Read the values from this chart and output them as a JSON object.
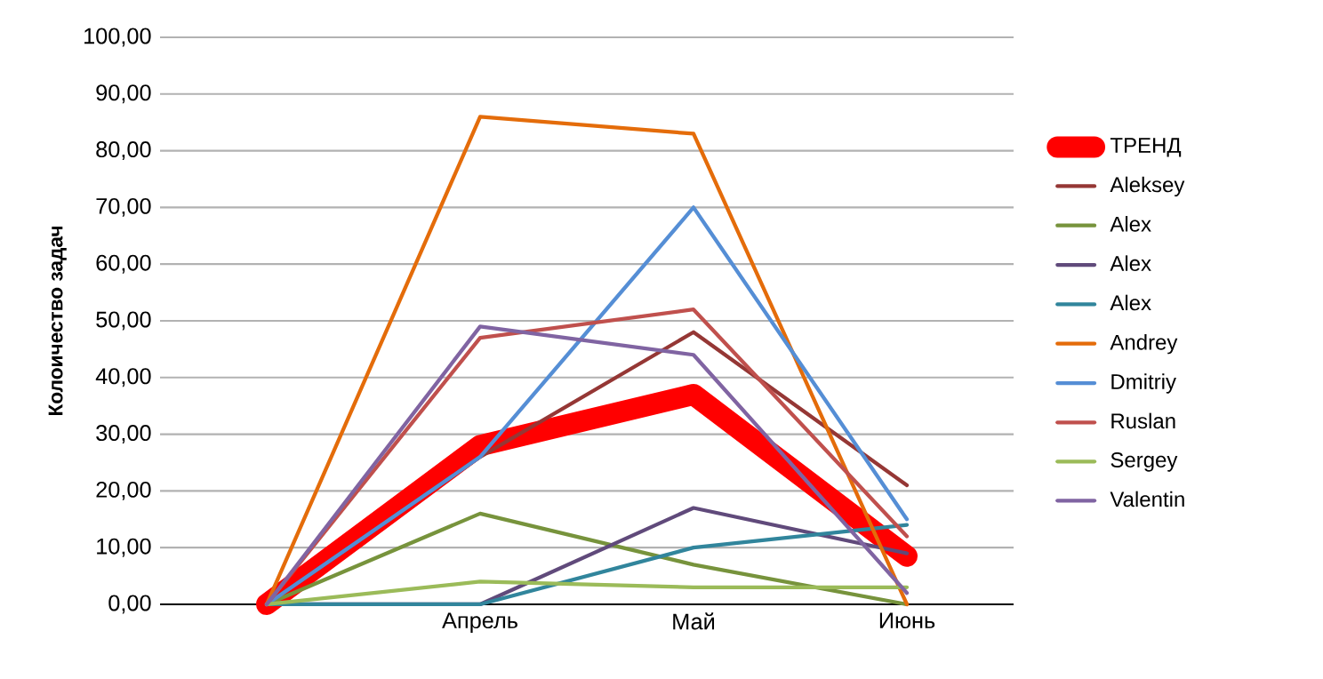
{
  "chart_data": {
    "type": "line",
    "ylabel": "Колоичество задач",
    "categories": [
      null,
      "Апрель",
      "Май",
      "Июнь"
    ],
    "ylim": [
      0,
      100
    ],
    "yticks": [
      {
        "value": 0,
        "label": "0,00"
      },
      {
        "value": 10,
        "label": "10,00"
      },
      {
        "value": 20,
        "label": "20,00"
      },
      {
        "value": 30,
        "label": "30,00"
      },
      {
        "value": 40,
        "label": "40,00"
      },
      {
        "value": 50,
        "label": "50,00"
      },
      {
        "value": 60,
        "label": "60,00"
      },
      {
        "value": 70,
        "label": "70,00"
      },
      {
        "value": 80,
        "label": "80,00"
      },
      {
        "value": 90,
        "label": "90,00"
      },
      {
        "value": 100,
        "label": "100,00"
      }
    ],
    "grid": "y",
    "legend": "right",
    "marker": "none",
    "line_style": "solid",
    "series": [
      {
        "name": "ТРЕНД",
        "color": "#ff0000",
        "values": [
          0,
          28,
          37,
          8.5
        ]
      },
      {
        "name": "Aleksey",
        "color": "#953735",
        "values": [
          0,
          26,
          48,
          21
        ]
      },
      {
        "name": "Alex",
        "color": "#77933c",
        "values": [
          0,
          16,
          7,
          0
        ]
      },
      {
        "name": "Alex",
        "color": "#604a7b",
        "values": [
          0,
          0,
          17,
          9
        ]
      },
      {
        "name": "Alex",
        "color": "#31859c",
        "values": [
          0,
          0,
          10,
          14
        ]
      },
      {
        "name": "Andrey",
        "color": "#e46c0a",
        "values": [
          0,
          86,
          83,
          0
        ]
      },
      {
        "name": "Dmitriy",
        "color": "#558ed5",
        "values": [
          0,
          26,
          70,
          15
        ]
      },
      {
        "name": "Ruslan",
        "color": "#c0504d",
        "values": [
          0,
          47,
          52,
          12
        ]
      },
      {
        "name": "Sergey",
        "color": "#9bbb59",
        "values": [
          0,
          4,
          3,
          3
        ]
      },
      {
        "name": "Valentin",
        "color": "#8064a2",
        "values": [
          0,
          49,
          44,
          2
        ]
      }
    ]
  }
}
